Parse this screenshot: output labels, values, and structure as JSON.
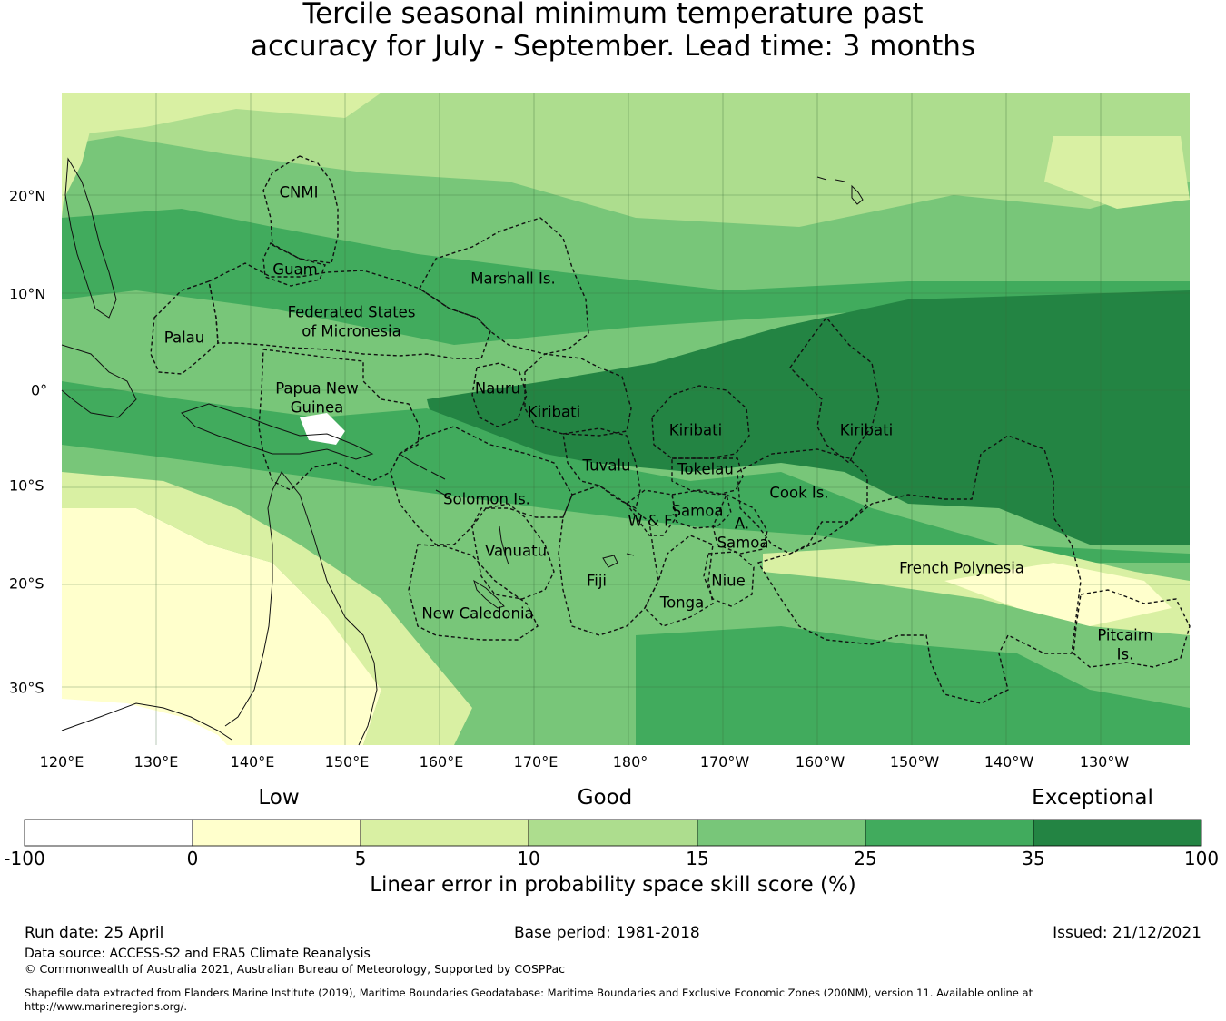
{
  "title_line1": "Tercile seasonal minimum temperature past",
  "title_line2": "accuracy for July - September. Lead time: 3 months",
  "map": {
    "lon_labels": [
      "120°E",
      "130°E",
      "140°E",
      "150°E",
      "160°E",
      "170°E",
      "180°",
      "170°W",
      "160°W",
      "150°W",
      "140°W",
      "130°W"
    ],
    "lat_labels": [
      "20°N",
      "10°N",
      "0°",
      "10°S",
      "20°S",
      "30°S"
    ],
    "regions": [
      {
        "id": "cnmi",
        "name": "CNMI"
      },
      {
        "id": "guam",
        "name": "Guam"
      },
      {
        "id": "marshall",
        "name": "Marshall Is."
      },
      {
        "id": "palau",
        "name": "Palau"
      },
      {
        "id": "fsm-1",
        "name": "Federated States"
      },
      {
        "id": "fsm-2",
        "name": "of Micronesia"
      },
      {
        "id": "png-1",
        "name": "Papua New"
      },
      {
        "id": "png-2",
        "name": "Guinea"
      },
      {
        "id": "nauru",
        "name": "Nauru"
      },
      {
        "id": "kiribati-w",
        "name": "Kiribati"
      },
      {
        "id": "kiribati-c",
        "name": "Kiribati"
      },
      {
        "id": "kiribati-e",
        "name": "Kiribati"
      },
      {
        "id": "tuvalu",
        "name": "Tuvalu"
      },
      {
        "id": "tokelau",
        "name": "Tokelau"
      },
      {
        "id": "solomon",
        "name": "Solomon Is."
      },
      {
        "id": "cook",
        "name": "Cook Is."
      },
      {
        "id": "samoa",
        "name": "Samoa"
      },
      {
        "id": "wf",
        "name": "W & F"
      },
      {
        "id": "asamoa-1",
        "name": "A."
      },
      {
        "id": "asamoa-2",
        "name": "Samoa"
      },
      {
        "id": "vanuatu",
        "name": "Vanuatu"
      },
      {
        "id": "fiji",
        "name": "Fiji"
      },
      {
        "id": "niue",
        "name": "Niue"
      },
      {
        "id": "tonga",
        "name": "Tonga"
      },
      {
        "id": "newcal",
        "name": "New Caledonia"
      },
      {
        "id": "frpoly",
        "name": "French Polynesia"
      },
      {
        "id": "pitcairn-1",
        "name": "Pitcairn"
      },
      {
        "id": "pitcairn-2",
        "name": "Is."
      }
    ]
  },
  "legend": {
    "classes": [
      "Low",
      "Good",
      "Exceptional"
    ],
    "ticks": [
      "-100",
      "0",
      "5",
      "10",
      "15",
      "25",
      "35",
      "100"
    ],
    "colors": [
      "#ffffff",
      "#ffffcc",
      "#d9f0a3",
      "#addd8e",
      "#78c679",
      "#41ab5d",
      "#238443"
    ],
    "label": "Linear error in probability space skill score (%)"
  },
  "footer": {
    "run_date": "Run date: 25 April",
    "base_period": "Base period: 1981-2018",
    "issued": "Issued: 21/12/2021",
    "data_source": "Data source: ACCESS-S2 and ERA5 Climate Reanalysis",
    "copyright": "© Commonwealth of Australia 2021, Australian Bureau of Meteorology, Supported by COSPPac",
    "shapefile_1": "Shapefile data extracted from Flanders Marine Institute (2019), Maritime Boundaries Geodatabase: Maritime Boundaries and Exclusive Economic Zones (200NM), version 11. Available online at",
    "shapefile_2": "http://www.marineregions.org/."
  }
}
